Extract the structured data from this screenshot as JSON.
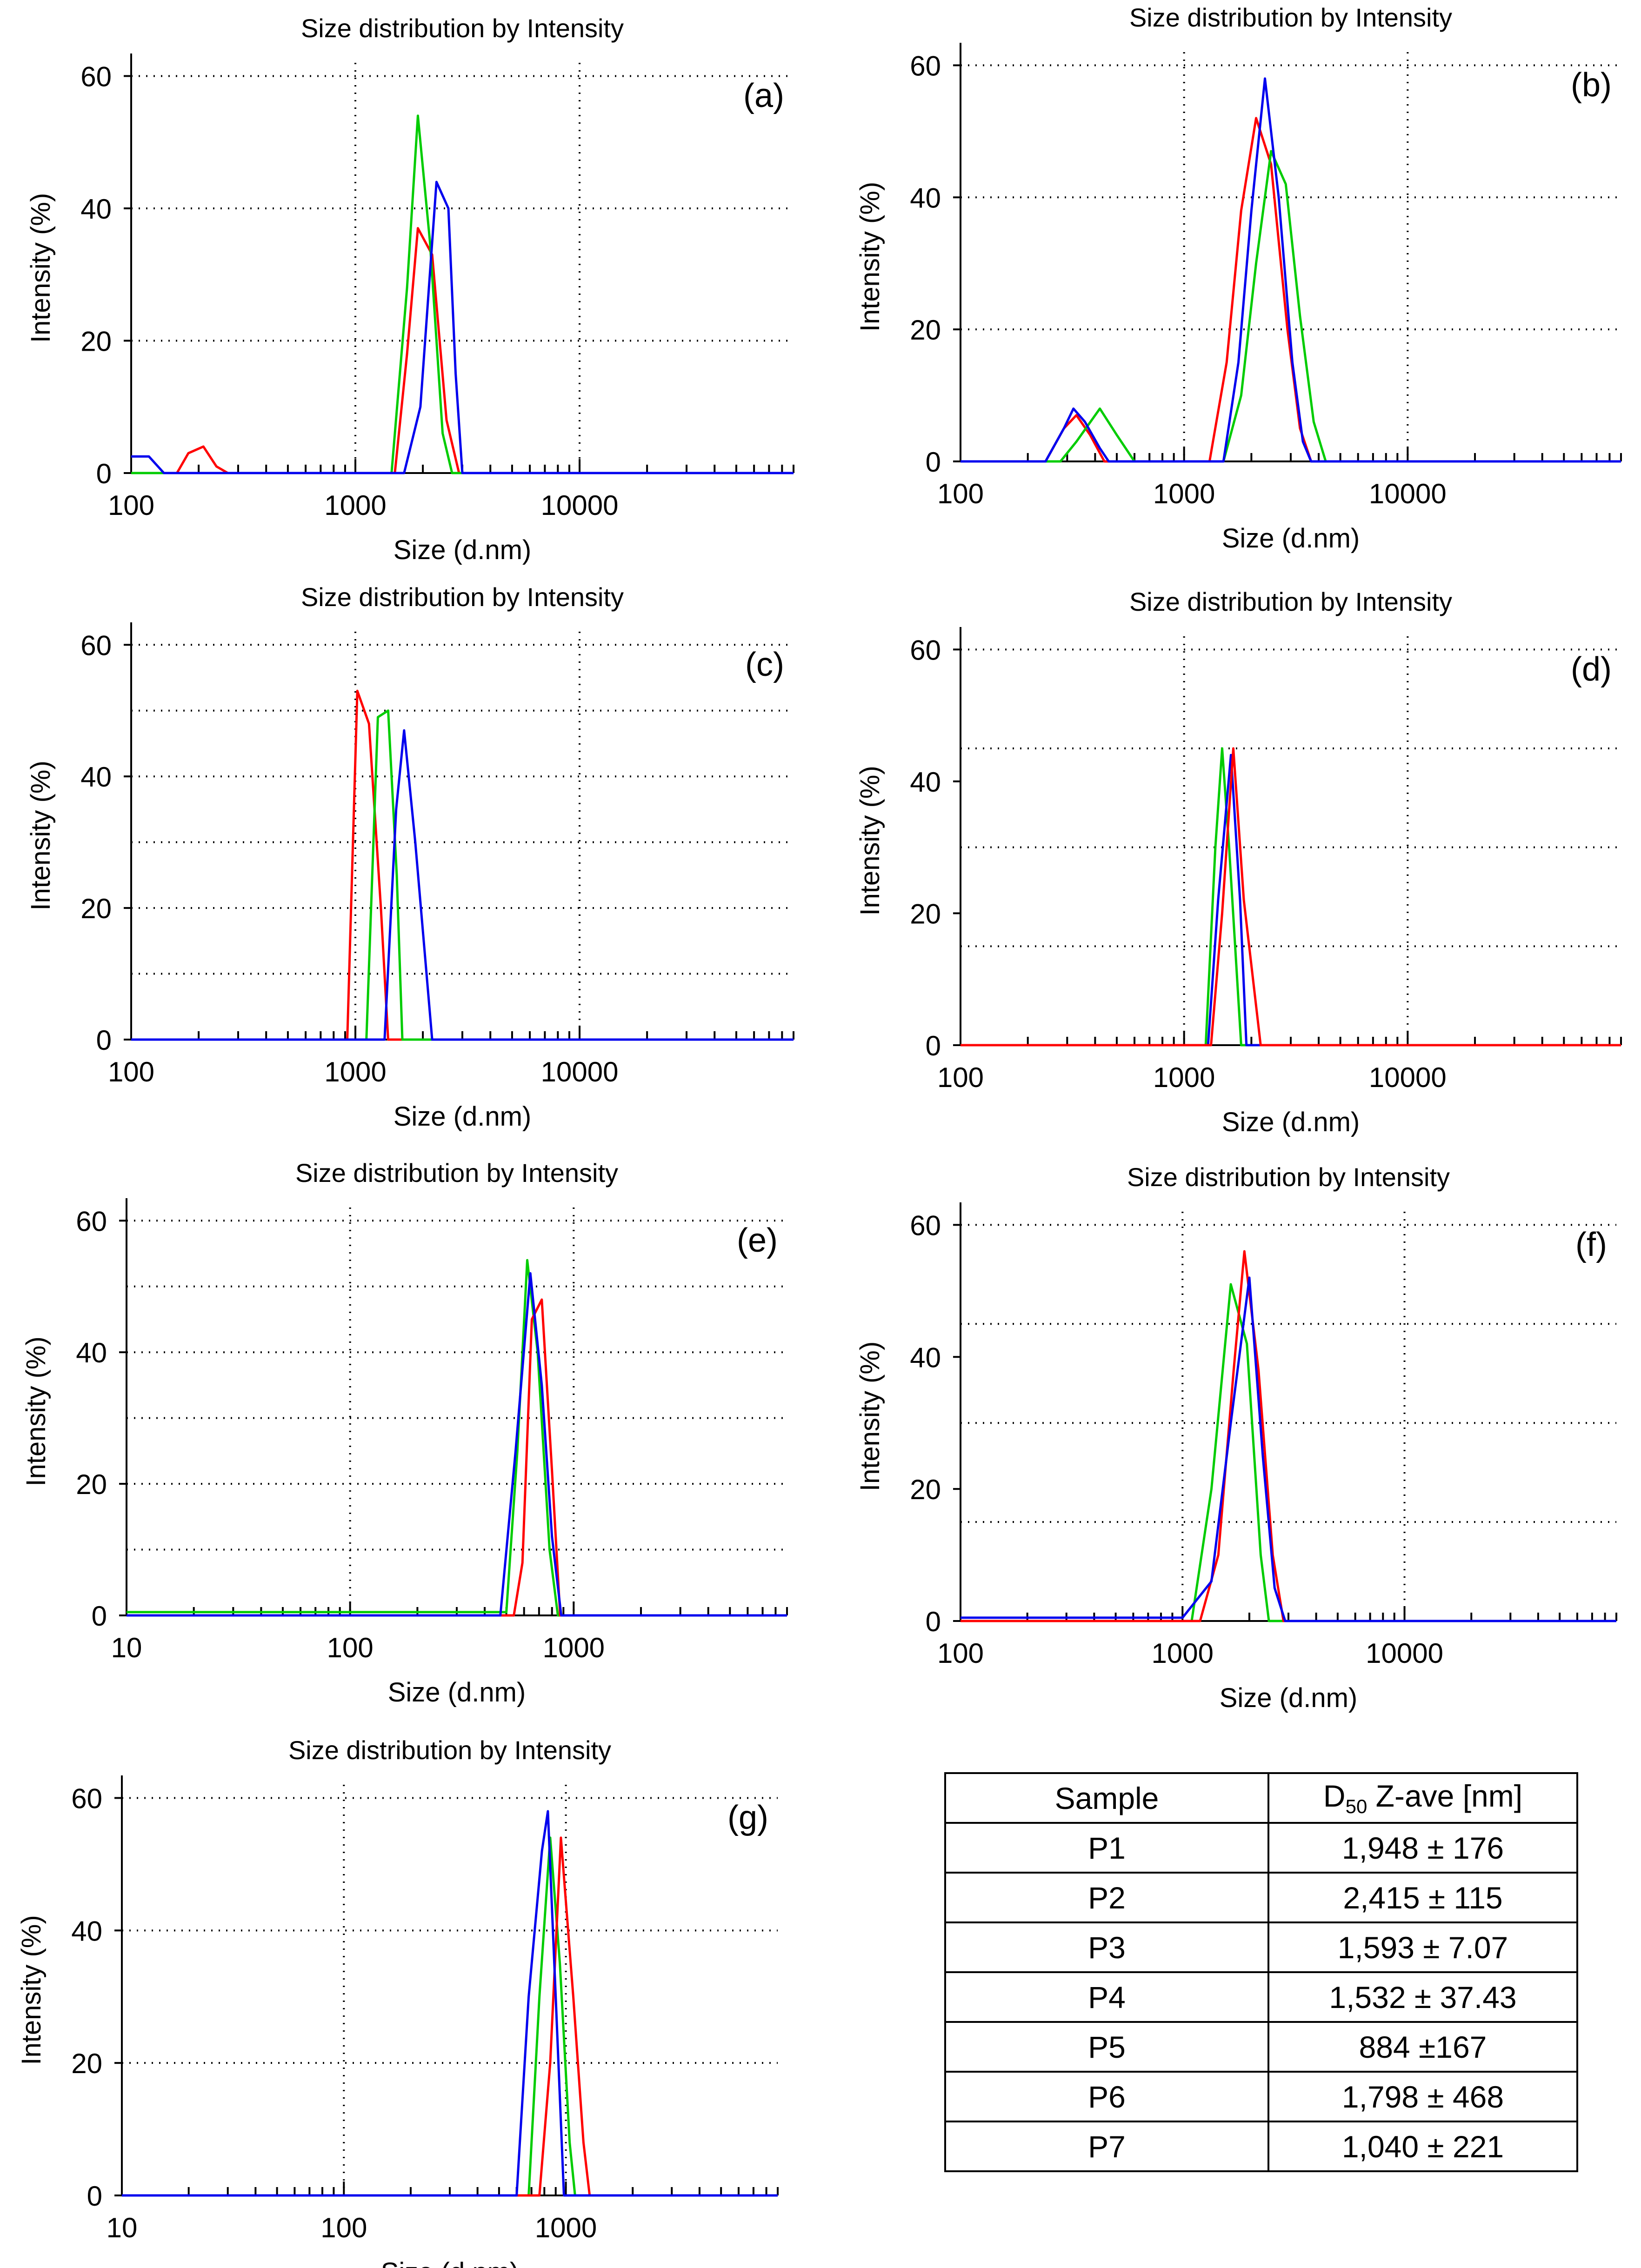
{
  "colors": {
    "red": "#ff0000",
    "green": "#00cc00",
    "blue": "#0000ee",
    "grid": "#000000"
  },
  "chart_data": [
    {
      "type": "line",
      "panel": "(a)",
      "title": "Size distribution by Intensity",
      "xlabel": "Size (d.nm)",
      "ylabel": "Intensity (%)",
      "xscale": "log",
      "xlim": [
        100,
        90000
      ],
      "ylim": [
        0,
        62
      ],
      "xticks": [
        100,
        1000,
        10000
      ],
      "yticks": [
        0,
        20,
        40,
        60
      ],
      "hgrid": [
        20,
        40,
        60
      ],
      "series": [
        {
          "name": "red",
          "color": "#ff0000",
          "points": [
            [
              100,
              0
            ],
            [
              160,
              0
            ],
            [
              180,
              3
            ],
            [
              210,
              4
            ],
            [
              240,
              1
            ],
            [
              270,
              0
            ],
            [
              1500,
              0
            ],
            [
              1700,
              18
            ],
            [
              1900,
              37
            ],
            [
              2200,
              33
            ],
            [
              2550,
              8
            ],
            [
              2900,
              0
            ],
            [
              90000,
              0
            ]
          ]
        },
        {
          "name": "green",
          "color": "#00cc00",
          "points": [
            [
              100,
              0
            ],
            [
              1450,
              0
            ],
            [
              1700,
              28
            ],
            [
              1900,
              54
            ],
            [
              2150,
              35
            ],
            [
              2450,
              6
            ],
            [
              2700,
              0
            ],
            [
              90000,
              0
            ]
          ]
        },
        {
          "name": "blue",
          "color": "#0000ee",
          "points": [
            [
              100,
              2.5
            ],
            [
              120,
              2.5
            ],
            [
              140,
              0
            ],
            [
              1650,
              0
            ],
            [
              1950,
              10
            ],
            [
              2300,
              44
            ],
            [
              2600,
              40
            ],
            [
              2800,
              15
            ],
            [
              3000,
              0
            ],
            [
              90000,
              0
            ]
          ]
        }
      ]
    },
    {
      "type": "line",
      "panel": "(b)",
      "title": "Size distribution by Intensity",
      "xlabel": "Size (d.nm)",
      "ylabel": "Intensity (%)",
      "xscale": "log",
      "xlim": [
        100,
        90000
      ],
      "ylim": [
        0,
        62
      ],
      "xticks": [
        100,
        1000,
        10000
      ],
      "yticks": [
        0,
        20,
        40,
        60
      ],
      "hgrid": [
        20,
        40,
        60
      ],
      "series": [
        {
          "name": "red",
          "color": "#ff0000",
          "points": [
            [
              100,
              0
            ],
            [
              240,
              0
            ],
            [
              290,
              5
            ],
            [
              330,
              7
            ],
            [
              380,
              4
            ],
            [
              440,
              0
            ],
            [
              1300,
              0
            ],
            [
              1550,
              15
            ],
            [
              1800,
              38
            ],
            [
              2100,
              52
            ],
            [
              2450,
              45
            ],
            [
              2900,
              20
            ],
            [
              3300,
              5
            ],
            [
              3700,
              0
            ],
            [
              90000,
              0
            ]
          ]
        },
        {
          "name": "green",
          "color": "#00cc00",
          "points": [
            [
              100,
              0
            ],
            [
              280,
              0
            ],
            [
              330,
              3
            ],
            [
              420,
              8
            ],
            [
              500,
              4
            ],
            [
              600,
              0
            ],
            [
              1500,
              0
            ],
            [
              1800,
              10
            ],
            [
              2100,
              30
            ],
            [
              2450,
              47
            ],
            [
              2850,
              42
            ],
            [
              3300,
              22
            ],
            [
              3800,
              6
            ],
            [
              4300,
              0
            ],
            [
              90000,
              0
            ]
          ]
        },
        {
          "name": "blue",
          "color": "#0000ee",
          "points": [
            [
              100,
              0
            ],
            [
              240,
              0
            ],
            [
              290,
              5
            ],
            [
              320,
              8
            ],
            [
              360,
              6
            ],
            [
              420,
              2
            ],
            [
              460,
              0
            ],
            [
              1500,
              0
            ],
            [
              1750,
              15
            ],
            [
              2000,
              38
            ],
            [
              2300,
              58
            ],
            [
              2650,
              40
            ],
            [
              3050,
              15
            ],
            [
              3400,
              3
            ],
            [
              3700,
              0
            ],
            [
              90000,
              0
            ]
          ]
        }
      ]
    },
    {
      "type": "line",
      "panel": "(c)",
      "title": "Size distribution by Intensity",
      "xlabel": "Size (d.nm)",
      "ylabel": "Intensity (%)",
      "xscale": "log",
      "xlim": [
        100,
        90000
      ],
      "ylim": [
        0,
        62
      ],
      "xticks": [
        100,
        1000,
        10000
      ],
      "yticks": [
        0,
        20,
        40,
        60
      ],
      "hgrid": [
        10,
        20,
        30,
        40,
        50,
        60
      ],
      "series": [
        {
          "name": "red",
          "color": "#ff0000",
          "points": [
            [
              100,
              0
            ],
            [
              920,
              0
            ],
            [
              1020,
              53
            ],
            [
              1150,
              48
            ],
            [
              1300,
              20
            ],
            [
              1400,
              0
            ],
            [
              90000,
              0
            ]
          ]
        },
        {
          "name": "green",
          "color": "#00cc00",
          "points": [
            [
              100,
              0
            ],
            [
              1120,
              0
            ],
            [
              1260,
              49
            ],
            [
              1400,
              50
            ],
            [
              1530,
              25
            ],
            [
              1620,
              0
            ],
            [
              90000,
              0
            ]
          ]
        },
        {
          "name": "blue",
          "color": "#0000ee",
          "points": [
            [
              100,
              0
            ],
            [
              1350,
              0
            ],
            [
              1520,
              35
            ],
            [
              1650,
              47
            ],
            [
              1850,
              30
            ],
            [
              2200,
              0
            ],
            [
              90000,
              0
            ]
          ]
        }
      ]
    },
    {
      "type": "line",
      "panel": "(d)",
      "title": "Size distribution by Intensity",
      "xlabel": "Size (d.nm)",
      "ylabel": "Intensity (%)",
      "xscale": "log",
      "xlim": [
        100,
        90000
      ],
      "ylim": [
        0,
        62
      ],
      "xticks": [
        100,
        1000,
        10000
      ],
      "yticks": [
        0,
        20,
        40,
        60
      ],
      "hgrid": [
        15,
        30,
        45,
        60
      ],
      "series": [
        {
          "name": "green",
          "color": "#00cc00",
          "points": [
            [
              100,
              0
            ],
            [
              1250,
              0
            ],
            [
              1380,
              30
            ],
            [
              1480,
              45
            ],
            [
              1590,
              30
            ],
            [
              1800,
              0
            ],
            [
              90000,
              0
            ]
          ]
        },
        {
          "name": "blue",
          "color": "#0000ee",
          "points": [
            [
              100,
              0
            ],
            [
              1280,
              0
            ],
            [
              1420,
              22
            ],
            [
              1620,
              44
            ],
            [
              1780,
              22
            ],
            [
              1900,
              0
            ],
            [
              90000,
              0
            ]
          ]
        },
        {
          "name": "red",
          "color": "#ff0000",
          "points": [
            [
              100,
              0
            ],
            [
              1320,
              0
            ],
            [
              1480,
              20
            ],
            [
              1660,
              45
            ],
            [
              1850,
              22
            ],
            [
              2200,
              0
            ],
            [
              90000,
              0
            ]
          ]
        }
      ]
    },
    {
      "type": "line",
      "panel": "(e)",
      "title": "Size distribution by Intensity",
      "xlabel": "Size (d.nm)",
      "ylabel": "Intensity (%)",
      "xscale": "log",
      "xlim": [
        10,
        9000
      ],
      "ylim": [
        0,
        62
      ],
      "xticks": [
        10,
        100,
        1000
      ],
      "yticks": [
        0,
        20,
        40,
        60
      ],
      "hgrid": [
        10,
        20,
        30,
        40,
        50,
        60
      ],
      "series": [
        {
          "name": "green",
          "color": "#00cc00",
          "points": [
            [
              10,
              0.5
            ],
            [
              500,
              0.5
            ],
            [
              560,
              25
            ],
            [
              620,
              54
            ],
            [
              690,
              40
            ],
            [
              780,
              10
            ],
            [
              850,
              0
            ],
            [
              9000,
              0
            ]
          ]
        },
        {
          "name": "red",
          "color": "#ff0000",
          "points": [
            [
              10,
              0
            ],
            [
              540,
              0
            ],
            [
              590,
              8
            ],
            [
              650,
              45
            ],
            [
              720,
              48
            ],
            [
              800,
              22
            ],
            [
              870,
              0
            ],
            [
              9000,
              0
            ]
          ]
        },
        {
          "name": "blue",
          "color": "#0000ee",
          "points": [
            [
              10,
              0
            ],
            [
              470,
              0
            ],
            [
              550,
              25
            ],
            [
              640,
              52
            ],
            [
              720,
              35
            ],
            [
              800,
              12
            ],
            [
              880,
              0
            ],
            [
              9000,
              0
            ]
          ]
        }
      ]
    },
    {
      "type": "line",
      "panel": "(f)",
      "title": "Size distribution by Intensity",
      "xlabel": "Size (d.nm)",
      "ylabel": "Intensity (%)",
      "xscale": "log",
      "xlim": [
        100,
        90000
      ],
      "ylim": [
        0,
        62
      ],
      "xticks": [
        100,
        1000,
        10000
      ],
      "yticks": [
        0,
        20,
        40,
        60
      ],
      "hgrid": [
        15,
        30,
        45,
        60
      ],
      "series": [
        {
          "name": "green",
          "color": "#00cc00",
          "points": [
            [
              100,
              0
            ],
            [
              1100,
              0
            ],
            [
              1350,
              20
            ],
            [
              1650,
              51
            ],
            [
              1950,
              42
            ],
            [
              2250,
              10
            ],
            [
              2450,
              0
            ],
            [
              90000,
              0
            ]
          ]
        },
        {
          "name": "red",
          "color": "#ff0000",
          "points": [
            [
              100,
              0
            ],
            [
              1200,
              0
            ],
            [
              1450,
              10
            ],
            [
              1700,
              38
            ],
            [
              1900,
              56
            ],
            [
              2200,
              38
            ],
            [
              2550,
              10
            ],
            [
              2850,
              0
            ],
            [
              90000,
              0
            ]
          ]
        },
        {
          "name": "blue",
          "color": "#0000ee",
          "points": [
            [
              100,
              0.5
            ],
            [
              1000,
              0.5
            ],
            [
              1350,
              6
            ],
            [
              1650,
              30
            ],
            [
              2000,
              52
            ],
            [
              2300,
              25
            ],
            [
              2600,
              5
            ],
            [
              2900,
              0
            ],
            [
              90000,
              0
            ]
          ]
        }
      ]
    },
    {
      "type": "line",
      "panel": "(g)",
      "title": "Size distribution by Intensity",
      "xlabel": "Size (d.nm)",
      "ylabel": "Intensity (%)",
      "xscale": "log",
      "xlim": [
        10,
        9000
      ],
      "ylim": [
        0,
        62
      ],
      "xticks": [
        10,
        100,
        1000
      ],
      "yticks": [
        0,
        20,
        40,
        60
      ],
      "hgrid": [
        20,
        40,
        60
      ],
      "series": [
        {
          "name": "green",
          "color": "#00cc00",
          "points": [
            [
              10,
              0
            ],
            [
              680,
              0
            ],
            [
              760,
              30
            ],
            [
              850,
              54
            ],
            [
              940,
              35
            ],
            [
              1040,
              8
            ],
            [
              1100,
              0
            ],
            [
              9000,
              0
            ]
          ]
        },
        {
          "name": "red",
          "color": "#ff0000",
          "points": [
            [
              10,
              0
            ],
            [
              760,
              0
            ],
            [
              850,
              20
            ],
            [
              950,
              54
            ],
            [
              1080,
              30
            ],
            [
              1200,
              8
            ],
            [
              1280,
              0
            ],
            [
              9000,
              0
            ]
          ]
        },
        {
          "name": "blue",
          "color": "#0000ee",
          "points": [
            [
              10,
              0
            ],
            [
              600,
              0
            ],
            [
              680,
              30
            ],
            [
              780,
              52
            ],
            [
              830,
              58
            ],
            [
              900,
              30
            ],
            [
              980,
              0
            ],
            [
              9000,
              0
            ]
          ]
        }
      ]
    }
  ],
  "table": {
    "header": {
      "sample": "Sample",
      "d50_main": "D",
      "d50_sub": "50",
      "d50_rest": " Z-ave [nm]"
    },
    "rows": [
      {
        "sample": "P1",
        "value": "1,948 ± 176"
      },
      {
        "sample": "P2",
        "value": "2,415 ± 115"
      },
      {
        "sample": "P3",
        "value": "1,593 ± 7.07"
      },
      {
        "sample": "P4",
        "value": "1,532 ± 37.43"
      },
      {
        "sample": "P5",
        "value": "884 ±167"
      },
      {
        "sample": "P6",
        "value": "1,798 ± 468"
      },
      {
        "sample": "P7",
        "value": "1,040 ± 221"
      }
    ]
  }
}
